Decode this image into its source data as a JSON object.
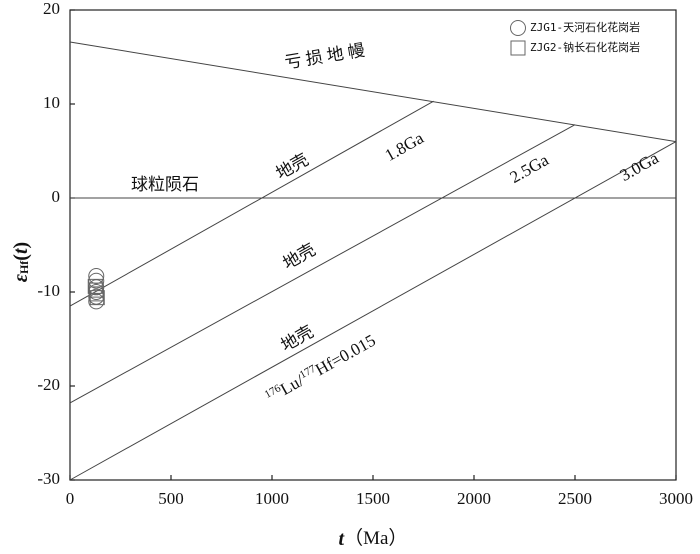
{
  "chart_data": {
    "type": "scatter",
    "x_label": [
      "t",
      "（Ma）"
    ],
    "y_label": [
      "ε",
      "Hf",
      "(",
      "t",
      ")"
    ],
    "xlim": [
      0,
      3000
    ],
    "xticks": [
      0,
      500,
      1000,
      1500,
      2000,
      2500,
      3000
    ],
    "ylim": [
      -30,
      20
    ],
    "yticks": [
      -30,
      -20,
      -10,
      0,
      10,
      20
    ],
    "lines": [
      {
        "x": [
          0,
          3000
        ],
        "y": [
          16.6,
          6
        ]
      },
      {
        "x": [
          0,
          3000
        ],
        "y": [
          0,
          0
        ]
      },
      {
        "x": [
          0,
          1800
        ],
        "y": [
          -11.5,
          10.3
        ]
      },
      {
        "x": [
          0,
          2500
        ],
        "y": [
          -21.8,
          7.8
        ]
      },
      {
        "x": [
          0,
          3000
        ],
        "y": [
          -30,
          6
        ]
      }
    ],
    "annotations": [
      "亏 损 地 幔",
      "球粒陨石",
      "地壳",
      "1.8Ga",
      "地壳",
      "2.5Ga",
      "地壳",
      "3.0Ga"
    ],
    "ratio_label": [
      "176",
      "Lu/",
      "177",
      "Hf=0.015"
    ],
    "series": [
      {
        "name": "ZJG1-天河石化花岗岩",
        "marker": "circle",
        "color": "#666",
        "x": [
          130,
          130,
          130,
          130,
          130,
          130
        ],
        "values": [
          -8.3,
          -8.8,
          -9.5,
          -10,
          -10.5,
          -11
        ]
      },
      {
        "name": "ZJG2-钠长石化花岗岩",
        "marker": "square",
        "color": "#666",
        "x": [
          125,
          130,
          130,
          135
        ],
        "values": [
          -9.4,
          -9.8,
          -10.2,
          -10.6
        ]
      }
    ]
  }
}
